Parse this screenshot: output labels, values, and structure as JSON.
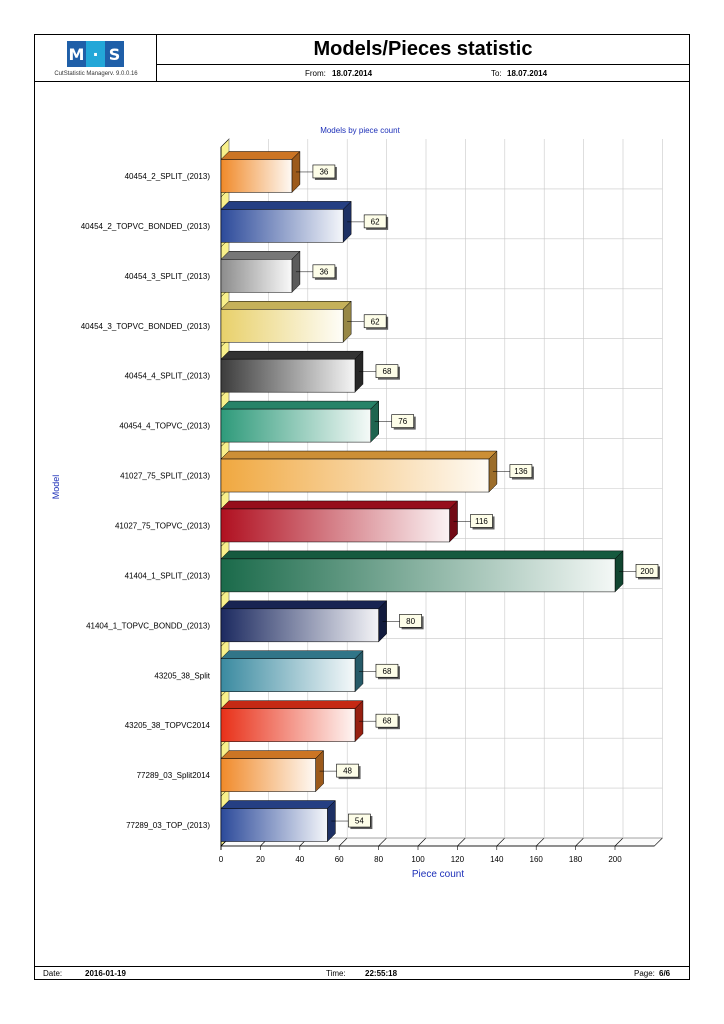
{
  "header": {
    "logo_text": [
      "M",
      "·",
      "S"
    ],
    "logo_subtitle": "CutStatistic Managerv. 9.0.0.16",
    "title": "Models/Pieces statistic",
    "from_label": "From:",
    "from_value": "18.07.2014",
    "to_label": "To:",
    "to_value": "18.07.2014"
  },
  "footer": {
    "date_label": "Date:",
    "date_value": "2016-01-19",
    "time_label": "Time:",
    "time_value": "22:55:18",
    "page_label": "Page:",
    "page_value": "6/6"
  },
  "colors": {
    "logo_blue": "#1f5fa8",
    "logo_cyan": "#23a7d8",
    "axis_title": "#1c2fb8"
  },
  "chart_data": {
    "type": "bar",
    "orientation": "horizontal",
    "style": "3d",
    "title": "Models by piece count",
    "xlabel": "Piece count",
    "ylabel": "Model",
    "xlim": [
      0,
      220
    ],
    "xticks": [
      0,
      20,
      40,
      60,
      80,
      100,
      120,
      140,
      160,
      180,
      200
    ],
    "grid": true,
    "legend": "none",
    "categories": [
      "40454_2_SPLIT_(2013)",
      "40454_2_TOPVC_BONDED_(2013)",
      "40454_3_SPLIT_(2013)",
      "40454_3_TOPVC_BONDED_(2013)",
      "40454_4_SPLIT_(2013)",
      "40454_4_TOPVC_(2013)",
      "41027_75_SPLIT_(2013)",
      "41027_75_TOPVC_(2013)",
      "41404_1_SPLIT_(2013)",
      "41404_1_TOPVC_BONDD_(2013)",
      "43205_38_Split",
      "43205_38_TOPVC2014",
      "77289_03_Split2014",
      "77289_03_TOP_(2013)"
    ],
    "values": [
      36,
      62,
      36,
      62,
      68,
      76,
      136,
      116,
      200,
      80,
      68,
      68,
      48,
      54
    ],
    "bar_colors": [
      "#f08a2a",
      "#2c4a9a",
      "#8c8c8c",
      "#e8d06a",
      "#3c3c3c",
      "#2e9a7a",
      "#f0a840",
      "#b01020",
      "#1a6a4a",
      "#1c2a60",
      "#3a8aa0",
      "#e83018",
      "#f08a2a",
      "#2c4a9a"
    ]
  }
}
